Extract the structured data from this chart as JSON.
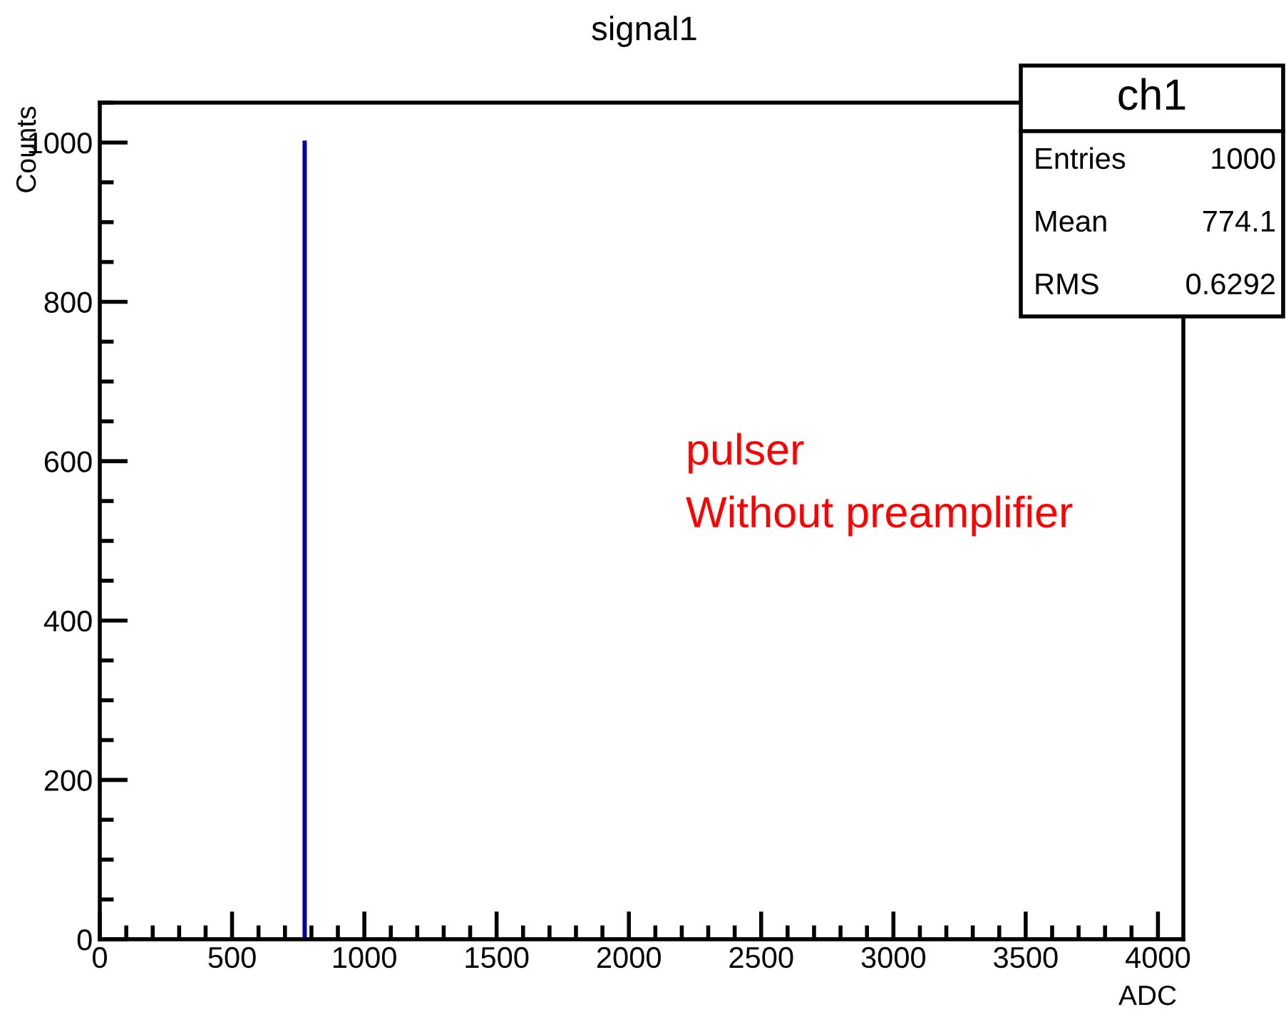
{
  "chart_data": {
    "type": "histogram",
    "title": "signal1",
    "xlabel": "ADC",
    "ylabel": "Counts",
    "bins": [
      0,
      774,
      775,
      4096
    ],
    "values": [
      0,
      1000,
      0
    ],
    "color": "#0000a0",
    "xlim": [
      0,
      4096
    ],
    "ylim": [
      0,
      1050
    ],
    "xticks": [
      0,
      500,
      1000,
      1500,
      2000,
      2500,
      3000,
      3500,
      4000
    ],
    "yticks": [
      0,
      200,
      400,
      600,
      800,
      1000
    ],
    "annotations": [
      "ch1",
      "Entries",
      "1000",
      "Mean",
      "774.1",
      "RMS",
      "0.6292",
      "pulser",
      "Without preamplifier"
    ]
  }
}
